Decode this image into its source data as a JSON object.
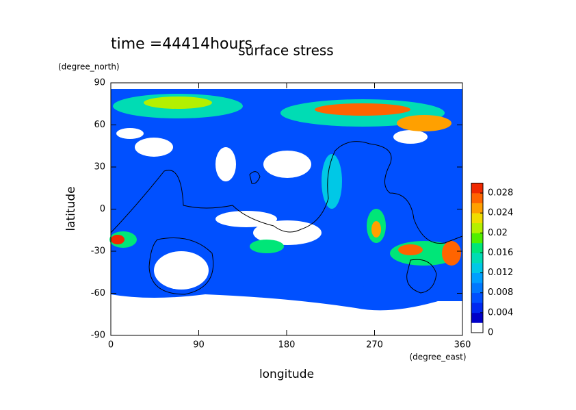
{
  "chart_data": {
    "type": "contour",
    "title": "surface stress",
    "subtitle": "time =44414hours",
    "x_label": "longitude",
    "x_unit": "(degree_east)",
    "y_label": "latitude",
    "y_unit": "(degree_north)",
    "xlim": [
      0,
      360
    ],
    "xticks": [
      0,
      90,
      180,
      270,
      360
    ],
    "ylim": [
      -90,
      90
    ],
    "yticks": [
      -90,
      -60,
      -30,
      0,
      30,
      60,
      90
    ],
    "colorbar_lim": [
      0,
      0.03
    ],
    "colorbar_ticks": [
      0,
      0.004,
      0.008,
      0.012,
      0.016,
      0.02,
      0.024,
      0.028
    ],
    "colors": [
      "#ffffff",
      "#0000c8",
      "#0028f0",
      "#0050ff",
      "#0078ff",
      "#00a0ff",
      "#00c8e6",
      "#00dcb4",
      "#00e678",
      "#50f000",
      "#b4f000",
      "#f0dc00",
      "#ffa000",
      "#ff6400",
      "#f02800"
    ]
  }
}
